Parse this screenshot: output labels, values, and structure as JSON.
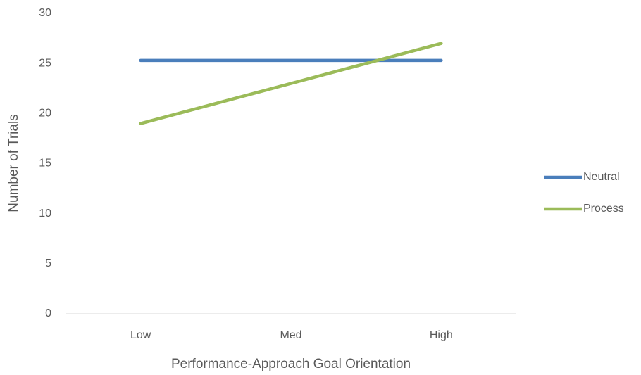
{
  "chart_data": {
    "type": "line",
    "x_label": "Performance-Approach Goal Orientation",
    "y_label": "Number of Trials",
    "categories": [
      "Low",
      "Med",
      "High"
    ],
    "series": [
      {
        "name": "Neutral",
        "color": "#4a7ebb",
        "values": [
          25.3,
          25.3,
          25.3
        ]
      },
      {
        "name": "Process",
        "color": "#9bbb59",
        "values": [
          19.0,
          23.0,
          27.0
        ]
      }
    ],
    "ylim": [
      0,
      30
    ],
    "yticks": [
      0,
      5,
      10,
      15,
      20,
      25,
      30
    ],
    "grid": false,
    "legend": "right"
  }
}
